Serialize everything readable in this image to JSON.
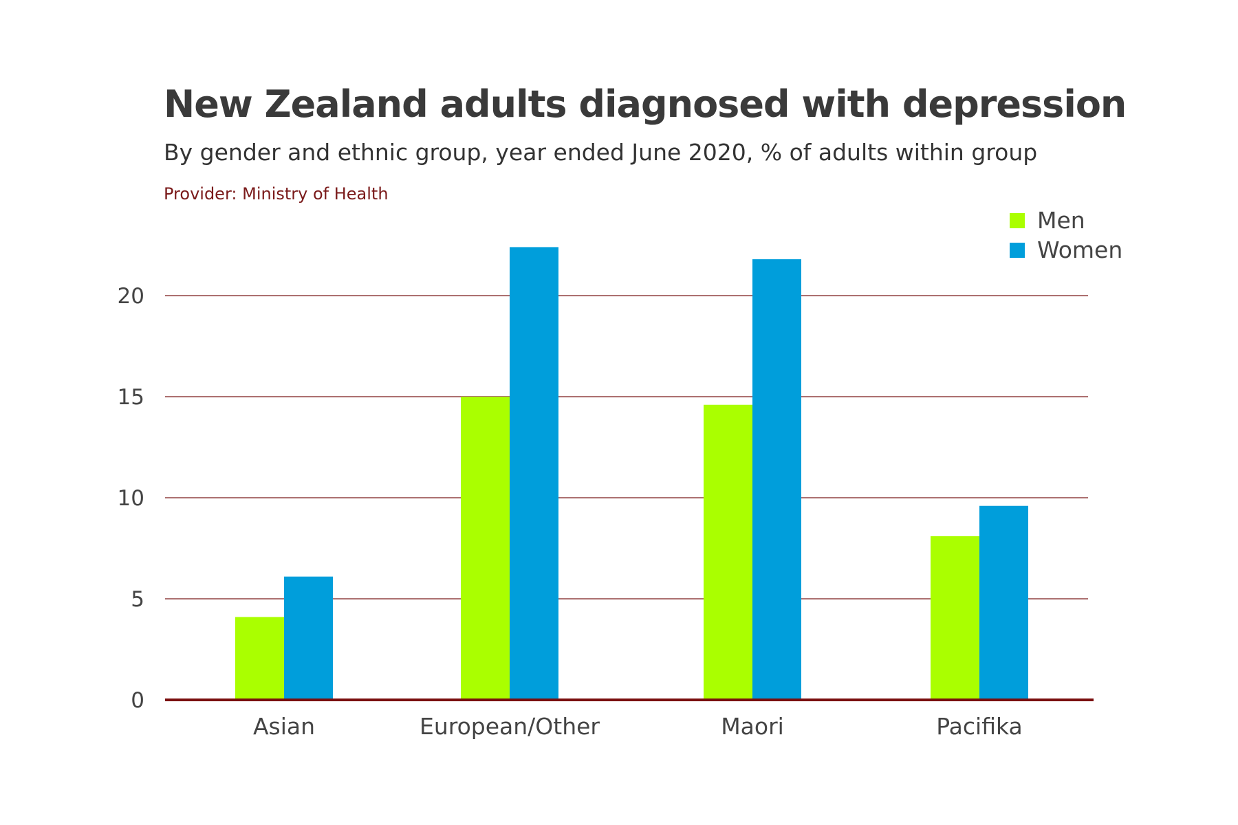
{
  "header": {
    "title": "New Zealand adults diagnosed with depression",
    "subtitle": "By gender and ethnic group, year ended June 2020, % of adults within group",
    "provider": "Provider: Ministry of Health"
  },
  "colors": {
    "men": "#aaff00",
    "women": "#009edb",
    "gridline": "#7a1a1a",
    "baseline": "#7a0f0f"
  },
  "chart_data": {
    "type": "bar",
    "title": "New Zealand adults diagnosed with depression",
    "subtitle": "By gender and ethnic group, year ended June 2020, % of adults within group",
    "xlabel": "",
    "ylabel": "",
    "categories": [
      "Asian",
      "European/Other",
      "Maori",
      "Pacifika"
    ],
    "series": [
      {
        "name": "Men",
        "values": [
          4.1,
          15.0,
          14.6,
          8.1
        ]
      },
      {
        "name": "Women",
        "values": [
          6.1,
          22.4,
          21.8,
          9.6
        ]
      }
    ],
    "ylim": [
      0,
      22.4
    ],
    "yticks": [
      0,
      5,
      10,
      15,
      20
    ],
    "grid": true,
    "legend_position": "top-right"
  }
}
